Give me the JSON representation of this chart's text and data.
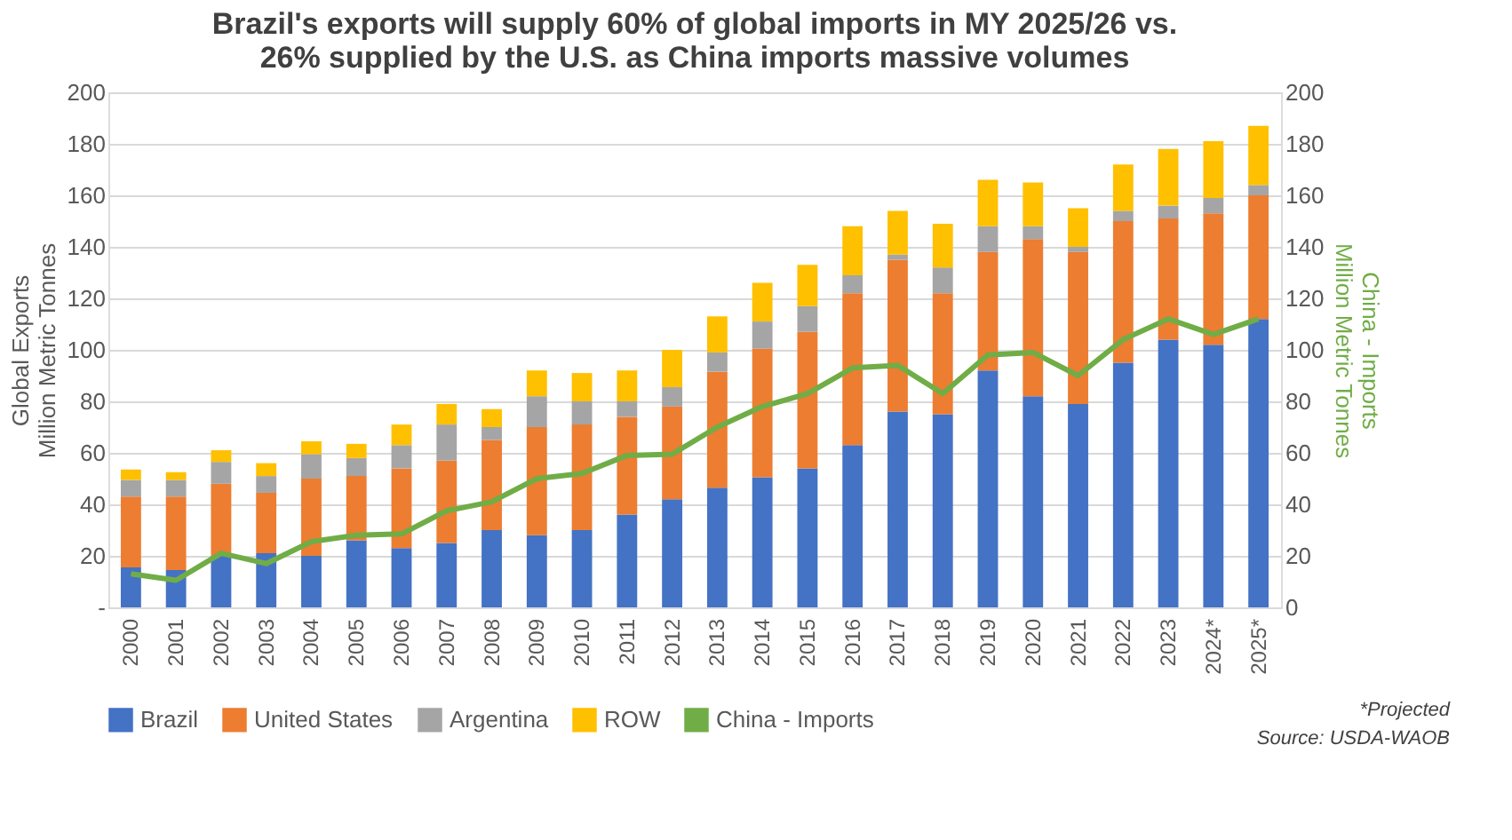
{
  "chart_data": {
    "type": "bar",
    "stacked": true,
    "title": "Brazil's exports will supply 60% of global imports in MY 2025/26 vs. 26% supplied by the U.S. as China imports massive volumes",
    "ylabel": "Global Exports\nMillion Metric Tonnes",
    "y2label": "China - Imports\nMillion Metric Tonnes",
    "categories": [
      "2000",
      "2001",
      "2002",
      "2003",
      "2004",
      "2005",
      "2006",
      "2007",
      "2008",
      "2009",
      "2010",
      "2011",
      "2012",
      "2013",
      "2014",
      "2015",
      "2016",
      "2017",
      "2018",
      "2019",
      "2020",
      "2021",
      "2022",
      "2023",
      "2024*",
      "2025*"
    ],
    "series": [
      {
        "name": "Brazil",
        "color": "#4472c4",
        "values": [
          15.5,
          14.5,
          20,
          21,
          20,
          26,
          23,
          25,
          30,
          28,
          30,
          36,
          42,
          46.5,
          50.5,
          54,
          63,
          76,
          75,
          92,
          82,
          79,
          95,
          104,
          102,
          112
        ]
      },
      {
        "name": "United States",
        "color": "#ed7d31",
        "values": [
          27.5,
          28.5,
          28,
          23.5,
          30,
          25,
          31,
          32,
          35,
          42,
          41,
          38,
          36,
          45,
          50,
          53,
          59,
          59,
          47,
          46,
          61,
          59,
          55,
          47,
          51,
          48
        ]
      },
      {
        "name": "Argentina",
        "color": "#a5a5a5",
        "values": [
          6.5,
          6.5,
          8.5,
          6.5,
          9.5,
          7,
          9,
          14,
          5,
          12,
          9,
          6,
          7.5,
          7.5,
          10.5,
          10,
          7,
          2,
          10,
          10,
          5,
          2,
          4,
          5,
          6,
          4
        ]
      },
      {
        "name": "ROW",
        "color": "#ffc000",
        "values": [
          4,
          3,
          4.5,
          5,
          5,
          5.5,
          8,
          8,
          7,
          10,
          11,
          12,
          14.5,
          14,
          15,
          16,
          19,
          17,
          17,
          18,
          17,
          15,
          18,
          22,
          22,
          23
        ]
      },
      {
        "name": "China - Imports",
        "type": "line",
        "axis": "y2",
        "color": "#70ad47",
        "values": [
          13,
          10.5,
          21,
          17,
          25.5,
          28,
          28.5,
          37.5,
          41,
          50,
          52,
          59,
          59.5,
          70,
          78,
          83,
          93,
          94,
          83,
          98,
          99,
          90,
          104,
          112,
          106,
          112
        ]
      }
    ],
    "ylim": [
      0,
      200
    ],
    "yticks": [
      {
        "value": 0,
        "label": "-"
      },
      20,
      40,
      60,
      80,
      100,
      120,
      140,
      160,
      180,
      200
    ],
    "y2lim": [
      0,
      200
    ],
    "y2ticks": [
      0,
      20,
      40,
      60,
      80,
      100,
      120,
      140,
      160,
      180,
      200
    ],
    "grid": "y",
    "legend": "bottom",
    "line_style": "solid",
    "annotations": [
      "*Projected",
      "Source: USDA-WAOB"
    ]
  }
}
